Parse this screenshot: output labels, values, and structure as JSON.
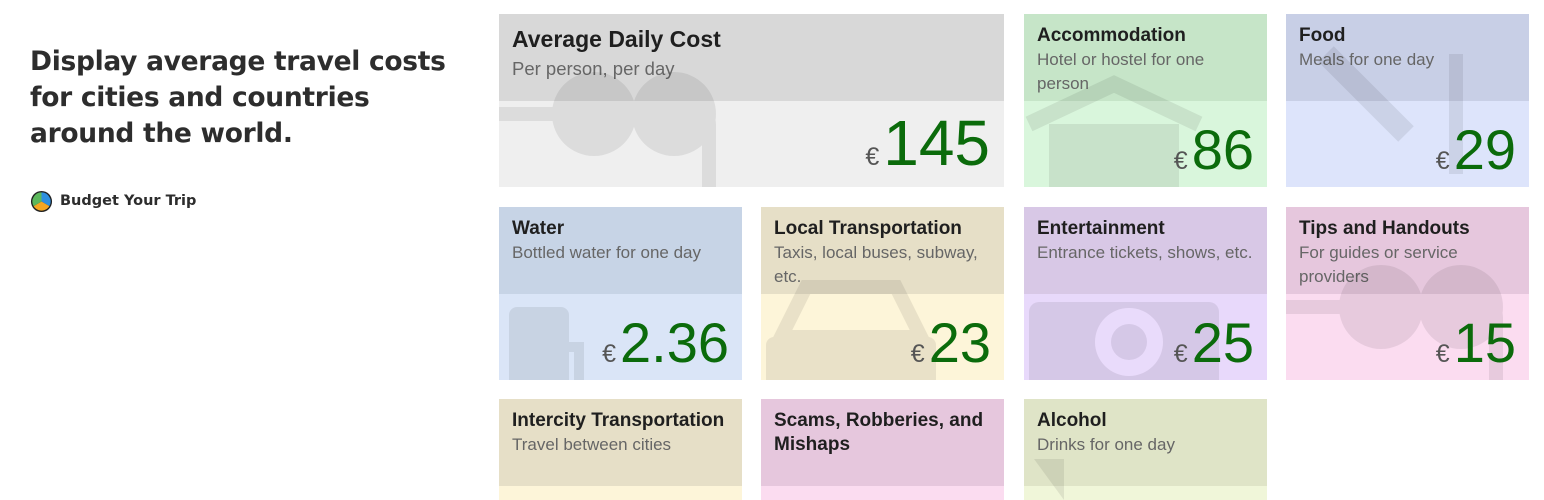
{
  "intro": {
    "text": "Display average travel costs for cities and countries around the world."
  },
  "brand": {
    "name": "Budget Your Trip"
  },
  "currency_symbol": "€",
  "cards": {
    "average": {
      "title": "Average Daily Cost",
      "desc": "Per person, per day",
      "amount": "145",
      "icon": "money-icon",
      "top_color": "#d8d8d8",
      "bottom_color": "#efefef"
    },
    "accommodation": {
      "title": "Accommodation",
      "desc": "Hotel or hostel for one person",
      "amount": "86",
      "icon": "house-icon",
      "top_color": "#c6e5c8",
      "bottom_color": "#d9f6dc"
    },
    "food": {
      "title": "Food",
      "desc": "Meals for one day",
      "amount": "29",
      "icon": "utensils-icon",
      "top_color": "#c8cfe6",
      "bottom_color": "#dde4fb"
    },
    "water": {
      "title": "Water",
      "desc": "Bottled water for one day",
      "amount": "2.36",
      "icon": "water-bottle-icon",
      "top_color": "#c7d4e6",
      "bottom_color": "#dae5f7"
    },
    "local_transport": {
      "title": "Local Transportation",
      "desc": "Taxis, local buses, subway, etc.",
      "amount": "23",
      "icon": "taxi-icon",
      "top_color": "#e6dfc7",
      "bottom_color": "#fdf5d9"
    },
    "entertainment": {
      "title": "Entertainment",
      "desc": "Entrance tickets, shows, etc.",
      "amount": "25",
      "icon": "camera-icon",
      "top_color": "#d8c8e6",
      "bottom_color": "#e8d9fb"
    },
    "tips": {
      "title": "Tips and Handouts",
      "desc": "For guides or service providers",
      "amount": "15",
      "icon": "money-icon",
      "top_color": "#e6c7dd",
      "bottom_color": "#fbdcf0"
    },
    "intercity": {
      "title": "Intercity Transportation",
      "desc": "Travel between cities",
      "icon": "bus-icon",
      "top_color": "#e6dfc7",
      "bottom_color": "#fdf5d9"
    },
    "scams": {
      "title": "Scams, Robberies, and Mishaps",
      "desc": "",
      "icon": "warning-icon",
      "top_color": "#e6c7dd",
      "bottom_color": "#fbdcf0"
    },
    "alcohol": {
      "title": "Alcohol",
      "desc": "Drinks for one day",
      "icon": "wine-icon",
      "top_color": "#dfe4c7",
      "bottom_color": "#f0f6d9"
    }
  }
}
